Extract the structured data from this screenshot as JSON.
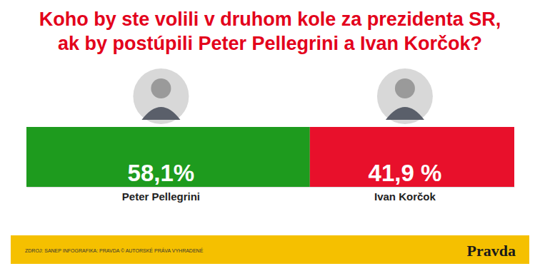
{
  "chart_data": {
    "type": "bar",
    "orientation": "horizontal",
    "stacked": true,
    "title": "Koho by ste volili v druhom kole za prezidenta SR,\nak by postúpili Peter Pellegrini a Ivan Korčok?",
    "categories": [
      null
    ],
    "series": [
      {
        "name": "Peter Pellegrini",
        "color": "#1e9b1e",
        "values": [
          58.1
        ],
        "value_labels": [
          "58,1%"
        ]
      },
      {
        "name": "Ivan Korčok",
        "color": "#e8102b",
        "values": [
          41.9
        ],
        "value_labels": [
          "41,9 %"
        ]
      }
    ],
    "xlim": [
      0,
      100
    ],
    "data_labels": true,
    "tick_labels": false,
    "grid": false,
    "annotations": [
      "ZDROJ: SANEP  INFOGRAFIKA: PRAVDA © AUTORSKÉ PRÁVA VYHRADENÉ",
      "Pravda"
    ]
  }
}
